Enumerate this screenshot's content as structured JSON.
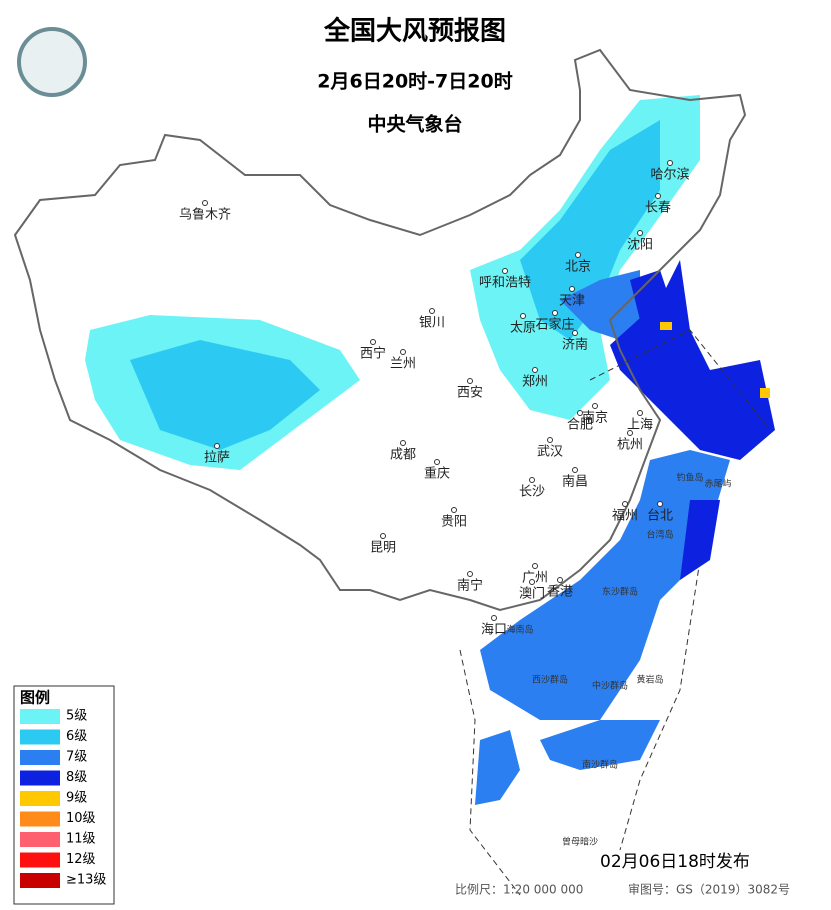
{
  "header": {
    "title": "全国大风预报图",
    "period": "2月6日20时-7日20时",
    "issuer": "中央气象台"
  },
  "legend": {
    "title": "图例",
    "items": [
      {
        "label": "5级",
        "color": "#6cf3f5"
      },
      {
        "label": "6级",
        "color": "#2ccaf2"
      },
      {
        "label": "7级",
        "color": "#2c7ff0"
      },
      {
        "label": "8级",
        "color": "#0c22e0"
      },
      {
        "label": "9级",
        "color": "#ffc800"
      },
      {
        "label": "10级",
        "color": "#ff8c1a"
      },
      {
        "label": "11级",
        "color": "#ff6070"
      },
      {
        "label": "12级",
        "color": "#ff1010"
      },
      {
        "label": "≥13级",
        "color": "#c80000"
      }
    ]
  },
  "cities": [
    "乌鲁木齐",
    "哈尔滨",
    "长春",
    "沈阳",
    "北京",
    "呼和浩特",
    "天津",
    "石家庄",
    "太原",
    "济南",
    "银川",
    "西宁",
    "兰州",
    "郑州",
    "西安",
    "南京",
    "合肥",
    "上海",
    "杭州",
    "武汉",
    "成都",
    "重庆",
    "拉萨",
    "长沙",
    "南昌",
    "福州",
    "台北",
    "贵阳",
    "昆明",
    "南宁",
    "广州",
    "香港",
    "澳门",
    "海口"
  ],
  "places": [
    "台湾岛",
    "东沙群岛",
    "西沙群岛",
    "中沙群岛",
    "黄岩岛",
    "南沙群岛",
    "曾母暗沙",
    "钓鱼岛",
    "赤尾屿",
    "海南岛"
  ],
  "footer": {
    "issued": "02月06日18时发布",
    "scale": "比例尺：1:20 000 000",
    "review": "审图号：GS（2019）3082号"
  }
}
